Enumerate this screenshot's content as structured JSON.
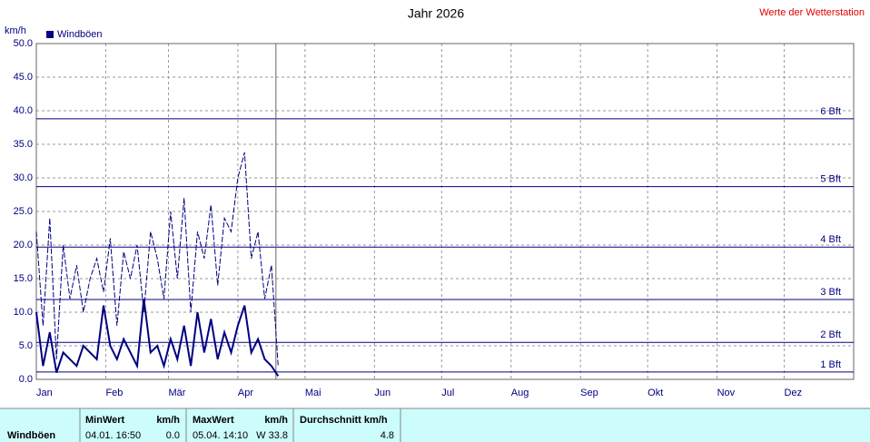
{
  "chart_data": {
    "type": "line",
    "title": "Jahr 2026",
    "subtitle": "Werte der Wetterstation",
    "y_label": "km/h",
    "x": [
      0,
      3,
      6,
      9,
      12,
      15,
      18,
      21,
      24,
      27,
      30,
      33,
      36,
      39,
      42,
      45,
      48,
      51,
      54,
      57,
      60,
      63,
      66,
      69,
      72,
      75,
      78,
      81,
      84,
      87,
      90,
      93,
      96,
      99,
      102,
      105,
      108
    ],
    "series": [
      {
        "name": "Windböen",
        "color": "#000080",
        "width": 1,
        "values": [
          22,
          8,
          24,
          3,
          20,
          12,
          17,
          10,
          15,
          18,
          13,
          21,
          8,
          19,
          15,
          20,
          10,
          22,
          18,
          12,
          25,
          15,
          27,
          10,
          22,
          18,
          26,
          14,
          24,
          22,
          30,
          33.8,
          18,
          22,
          12,
          17,
          2
        ]
      },
      {
        "color": "#000080",
        "width": 2,
        "values": [
          10,
          2,
          7,
          1,
          4,
          3,
          2,
          5,
          4,
          3,
          11,
          5,
          3,
          6,
          4,
          2,
          12,
          4,
          5,
          2,
          6,
          3,
          8,
          2,
          10,
          4,
          9,
          3,
          7,
          4,
          8,
          11,
          4,
          6,
          3,
          2,
          0.5
        ]
      }
    ],
    "xlim": [
      0,
      365
    ],
    "xticks": [
      {
        "value": 0,
        "label": "Jan"
      },
      {
        "value": 31,
        "label": "Feb"
      },
      {
        "value": 59,
        "label": "Mär"
      },
      {
        "value": 90,
        "label": "Apr"
      },
      {
        "value": 120,
        "label": "Mai"
      },
      {
        "value": 151,
        "label": "Jun"
      },
      {
        "value": 181,
        "label": "Jul"
      },
      {
        "value": 212,
        "label": "Aug"
      },
      {
        "value": 243,
        "label": "Sep"
      },
      {
        "value": 273,
        "label": "Okt"
      },
      {
        "value": 304,
        "label": "Nov"
      },
      {
        "value": 334,
        "label": "Dez"
      }
    ],
    "ylim": [
      0,
      50
    ],
    "yticks": [
      {
        "value": 0,
        "label": "0.0"
      },
      {
        "value": 5,
        "label": "5.0"
      },
      {
        "value": 10,
        "label": "10.0"
      },
      {
        "value": 15,
        "label": "15.0"
      },
      {
        "value": 20,
        "label": "20.0"
      },
      {
        "value": 25,
        "label": "25.0"
      },
      {
        "value": 30,
        "label": "30.0"
      },
      {
        "value": 35,
        "label": "35.0"
      },
      {
        "value": 40,
        "label": "40.0"
      },
      {
        "value": 45,
        "label": "45.0"
      },
      {
        "value": 50,
        "label": "50.0"
      }
    ],
    "reference_lines": [
      {
        "value": 1.1,
        "label": "1 Bft"
      },
      {
        "value": 5.5,
        "label": "2 Bft"
      },
      {
        "value": 11.9,
        "label": "3 Bft"
      },
      {
        "value": 19.7,
        "label": "4 Bft"
      },
      {
        "value": 28.7,
        "label": "5 Bft"
      },
      {
        "value": 38.8,
        "label": "6 Bft"
      }
    ],
    "current_x": 107,
    "grid": true
  },
  "table": {
    "row_label": "Windböen",
    "min": {
      "header": "MinWert",
      "unit": "km/h",
      "time": "04.01.  16:50",
      "value": "0.0"
    },
    "max": {
      "header": "MaxWert",
      "unit": "km/h",
      "time": "05.04.  14:10",
      "value": "W 33.8"
    },
    "avg": {
      "header": "Durchschnitt km/h",
      "value": "4.8"
    }
  }
}
